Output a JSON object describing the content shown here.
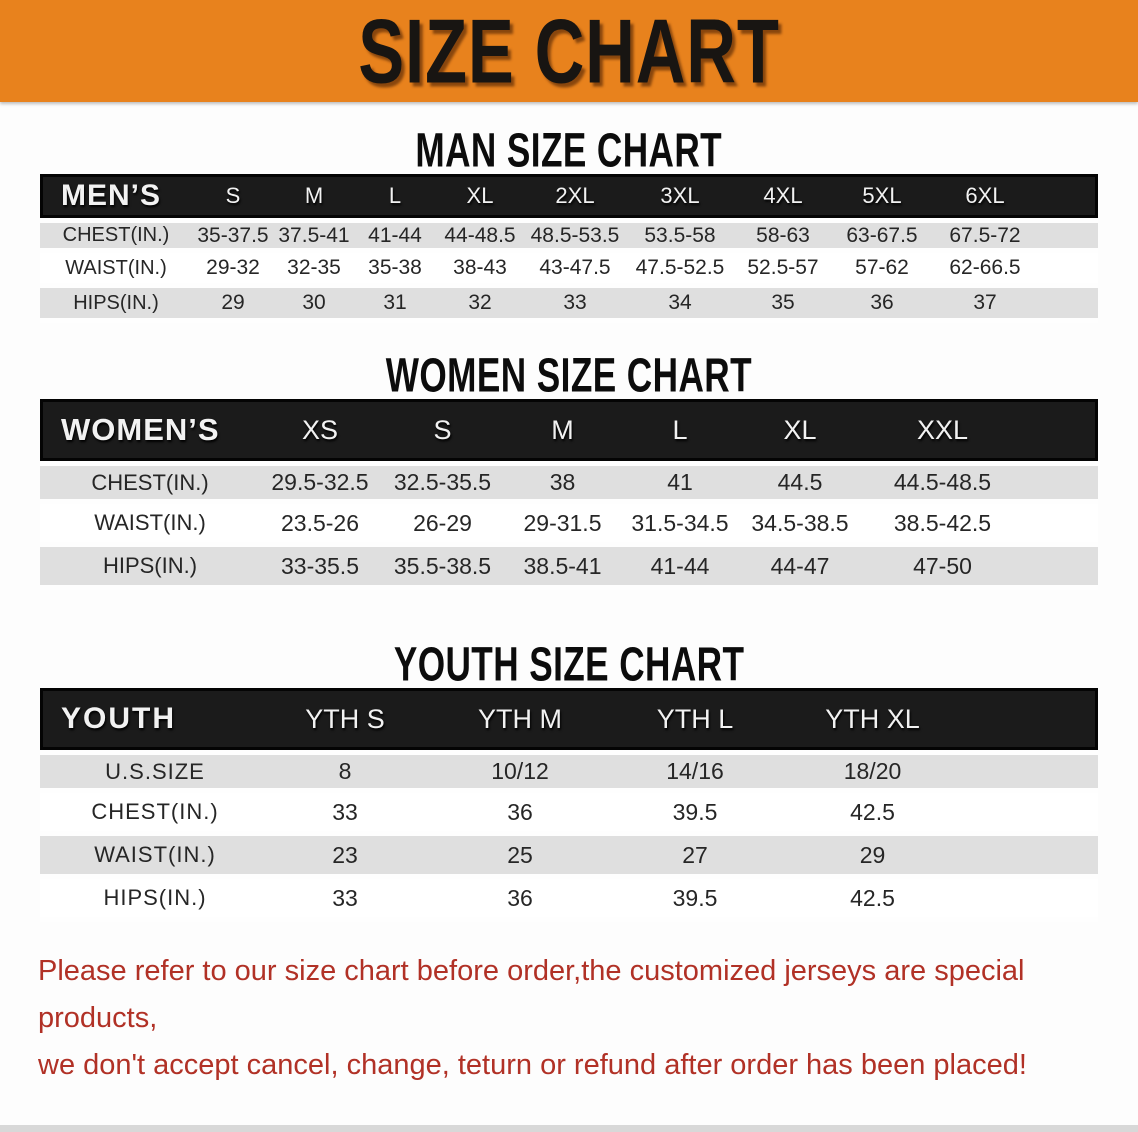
{
  "banner": {
    "title": "SIZE CHART"
  },
  "headings": {
    "man": "MAN SIZE CHART",
    "women": "WOMEN SIZE CHART",
    "youth": "YOUTH SIZE CHART"
  },
  "tables": {
    "men": {
      "label": "MEN’S",
      "columns": [
        "S",
        "M",
        "L",
        "XL",
        "2XL",
        "3XL",
        "4XL",
        "5XL",
        "6XL"
      ],
      "rows": [
        {
          "label": "CHEST(IN.)",
          "values": [
            "35-37.5",
            "37.5-41",
            "41-44",
            "44-48.5",
            "48.5-53.5",
            "53.5-58",
            "58-63",
            "63-67.5",
            "67.5-72"
          ]
        },
        {
          "label": "WAIST(IN.)",
          "values": [
            "29-32",
            "32-35",
            "35-38",
            "38-43",
            "43-47.5",
            "47.5-52.5",
            "52.5-57",
            "57-62",
            "62-66.5"
          ]
        },
        {
          "label": "HIPS(IN.)",
          "values": [
            "29",
            "30",
            "31",
            "32",
            "33",
            "34",
            "35",
            "36",
            "37"
          ]
        }
      ]
    },
    "women": {
      "label": "WOMEN’S",
      "columns": [
        "XS",
        "S",
        "M",
        "L",
        "XL",
        "XXL"
      ],
      "rows": [
        {
          "label": "CHEST(IN.)",
          "values": [
            "29.5-32.5",
            "32.5-35.5",
            "38",
            "41",
            "44.5",
            "44.5-48.5"
          ]
        },
        {
          "label": "WAIST(IN.)",
          "values": [
            "23.5-26",
            "26-29",
            "29-31.5",
            "31.5-34.5",
            "34.5-38.5",
            "38.5-42.5"
          ]
        },
        {
          "label": "HIPS(IN.)",
          "values": [
            "33-35.5",
            "35.5-38.5",
            "38.5-41",
            "41-44",
            "44-47",
            "47-50"
          ]
        }
      ]
    },
    "youth": {
      "label": "YOUTH",
      "columns": [
        "YTH S",
        "YTH M",
        "YTH L",
        "YTH XL"
      ],
      "rows": [
        {
          "label": "U.S.SIZE",
          "values": [
            "8",
            "10/12",
            "14/16",
            "18/20"
          ]
        },
        {
          "label": "CHEST(IN.)",
          "values": [
            "33",
            "36",
            "39.5",
            "42.5"
          ]
        },
        {
          "label": "WAIST(IN.)",
          "values": [
            "23",
            "25",
            "27",
            "29"
          ]
        },
        {
          "label": "HIPS(IN.)",
          "values": [
            "33",
            "36",
            "39.5",
            "42.5"
          ]
        }
      ]
    }
  },
  "footer": {
    "line1": "Please refer to our size chart before order,the customized jerseys are special products,",
    "line2": "we don't accept cancel, change, teturn or refund after order has been placed!"
  },
  "colors": {
    "banner_orange": "#e8821d",
    "header_black": "#1b1b1b",
    "row_gray": "#dfdfdf",
    "note_red": "#b13126"
  }
}
